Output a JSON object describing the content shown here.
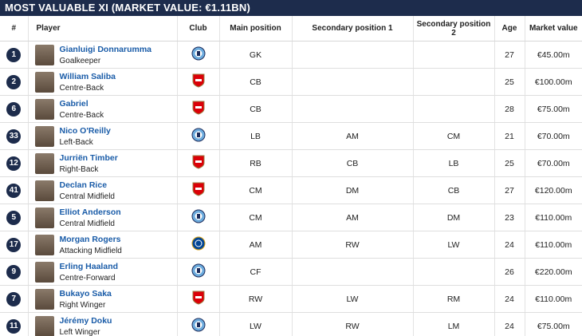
{
  "title": "MOST VALUABLE XI (MARKET VALUE: €1.11BN)",
  "table": {
    "headers": [
      "#",
      "Player",
      "Club",
      "Main position",
      "Secondary position 1",
      "Secondary position 2",
      "Age",
      "Market value"
    ],
    "rows": [
      {
        "number": 1,
        "name": "Gianluigi Donnarumma",
        "position": "Goalkeeper",
        "main": "GK",
        "age": 27,
        "value": "€45.00m"
      },
      {
        "number": 2,
        "name": "William Saliba",
        "position": "Centre-Back",
        "main": "CB",
        "age": 25,
        "value": "€100.00m"
      },
      {
        "number": 6,
        "name": "Gabriel",
        "position": "Centre-Back",
        "main": "CB",
        "age": 28,
        "value": "€75.00m"
      },
      {
        "number": 33,
        "name": "Nico O'Reilly",
        "position": "Left-Back",
        "main": "LB",
        "secondary_1": "AM",
        "secondary_2": "CM",
        "age": 21,
        "value": "€70.00m"
      },
      {
        "number": 12,
        "name": "Jurriën Timber",
        "position": "Right-Back",
        "main": "RB",
        "secondary_1": "CB",
        "secondary_2": "LB",
        "age": 25,
        "value": "€70.00m"
      },
      {
        "number": 41,
        "name": "Declan Rice",
        "position": "Central Midfield",
        "main": "CM",
        "secondary_1": "DM",
        "secondary_2": "CB",
        "age": 27,
        "value": "€120.00m"
      },
      {
        "number": 5,
        "name": "Elliot Anderson",
        "position": "Central Midfield",
        "main": "CM",
        "secondary_1": "AM",
        "secondary_2": "DM",
        "age": 23,
        "value": "€110.00m"
      },
      {
        "number": 17,
        "name": "Morgan Rogers",
        "position": "Attacking Midfield",
        "main": "AM",
        "secondary_1": "RW",
        "secondary_2": "LW",
        "age": 24,
        "value": "€110.00m"
      },
      {
        "number": 9,
        "name": "Erling Haaland",
        "position": "Centre-Forward",
        "main": "CF",
        "age": 26,
        "value": "€220.00m"
      },
      {
        "number": 7,
        "name": "Bukayo Saka",
        "position": "Right Winger",
        "main": "RW",
        "secondary_1": "LW",
        "secondary_2": "RM",
        "age": 24,
        "value": "€110.00m"
      },
      {
        "number": 11,
        "name": "Jérémy Doku",
        "position": "Left Winger",
        "main": "LW",
        "secondary_1": "RW",
        "secondary_2": "LM",
        "age": 24,
        "value": "€75.00m"
      }
    ]
  }
}
